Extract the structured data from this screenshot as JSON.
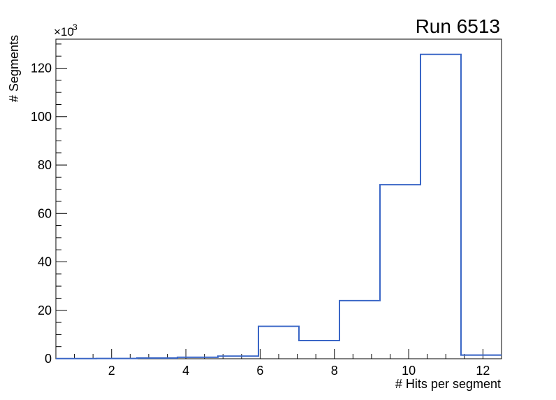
{
  "chart_data": {
    "type": "histogram-step",
    "title": "Run 6513",
    "xlabel": "# Hits per segment",
    "ylabel": "# Segments",
    "y_multiplier_base": "×10",
    "y_multiplier_exp": "3",
    "x_range": [
      0.5,
      12.5
    ],
    "y_range": [
      0,
      132000
    ],
    "bin_edges": [
      0.5,
      1.5909,
      2.6818,
      3.7727,
      4.8636,
      5.9545,
      7.0455,
      8.1364,
      9.2273,
      10.3182,
      11.4091,
      12.5
    ],
    "counts": [
      60,
      120,
      300,
      600,
      1100,
      13400,
      7500,
      24000,
      71900,
      125700,
      1500
    ],
    "x_major_ticks": [
      2,
      4,
      6,
      8,
      10,
      12
    ],
    "x_major_tick_labels": [
      "2",
      "4",
      "6",
      "8",
      "10",
      "12"
    ],
    "x_minor_step": 0.5,
    "y_major_ticks": [
      0,
      20000,
      40000,
      60000,
      80000,
      100000,
      120000
    ],
    "y_major_tick_labels": [
      "0",
      "20",
      "40",
      "60",
      "80",
      "100",
      "120"
    ],
    "y_minor_step": 5000,
    "line_color": "#3a66c6",
    "frame_color": "#000000",
    "grid": false,
    "legend": null
  }
}
